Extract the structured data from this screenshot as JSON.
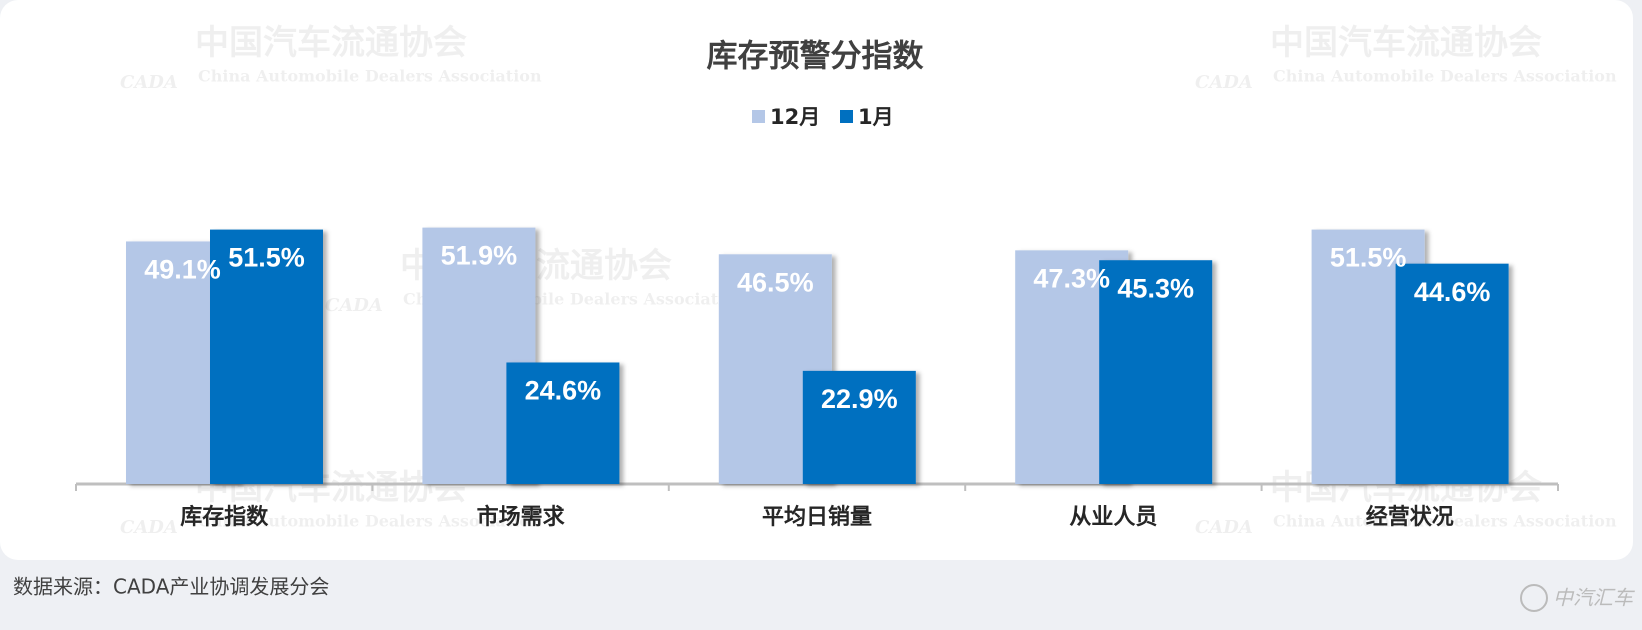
{
  "chart_data": {
    "type": "bar",
    "title": "库存预警分指数",
    "categories": [
      "库存指数",
      "市场需求",
      "平均日销量",
      "从业人员",
      "经营状况"
    ],
    "series": [
      {
        "name": "12月",
        "color": "#b4c7e7",
        "values": [
          49.1,
          51.9,
          46.5,
          47.3,
          51.5
        ],
        "value_labels": [
          "49.1%",
          "51.9%",
          "46.5%",
          "47.3%",
          "51.5%"
        ]
      },
      {
        "name": "1月",
        "color": "#0070c0",
        "values": [
          51.5,
          24.6,
          22.9,
          45.3,
          44.6
        ],
        "value_labels": [
          "51.5%",
          "24.6%",
          "22.9%",
          "45.3%",
          "44.6%"
        ]
      }
    ],
    "legend": "top",
    "source": "数据来源：CADA产业协调发展分会",
    "watermark": {
      "name": "中国汽车流通协会",
      "english": "China Automobile Dealers Association",
      "abbr": "CADA"
    },
    "logo_text": "中汽汇车"
  }
}
